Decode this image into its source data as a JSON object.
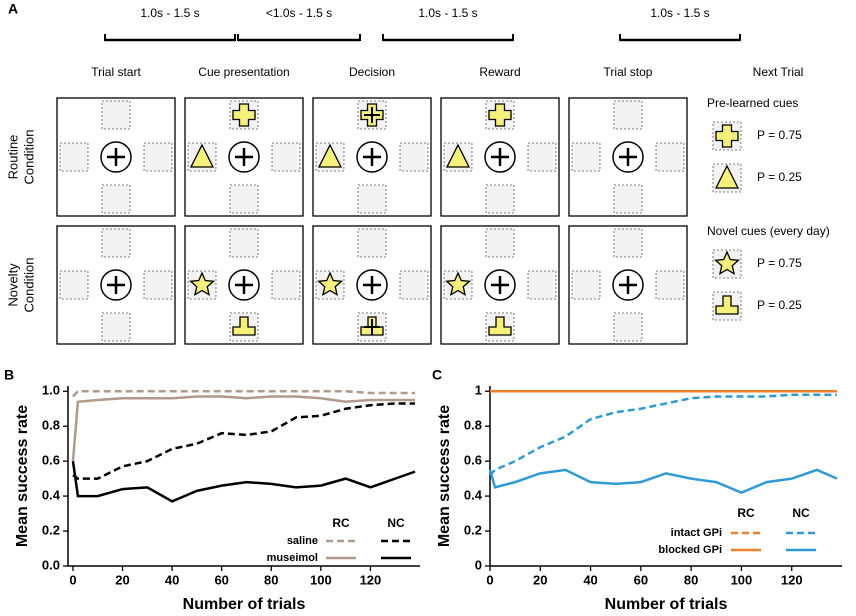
{
  "panel_a": {
    "label": "A",
    "timings": [
      "1.0s - 1.5 s",
      "<1.0s - 1.5 s",
      "1.0s - 1.5 s",
      "1.0s - 1.5 s"
    ],
    "phases": [
      "Trial start",
      "Cue presentation",
      "Decision",
      "Reward",
      "Trial stop",
      "Next Trial"
    ],
    "rows": [
      [
        "Routine",
        "Condition"
      ],
      [
        "Novelty",
        "Condition"
      ]
    ],
    "cue_legends": [
      {
        "title": "Pre-learned cues",
        "items": [
          "P = 0.75",
          "P = 0.25"
        ]
      },
      {
        "title": "Novel cues (every day)",
        "items": [
          "P = 0.75",
          "P = 0.25"
        ]
      }
    ]
  },
  "chart_data": [
    {
      "type": "line",
      "panel_label": "B",
      "y_label": "Mean success rate",
      "x_label": "Number of trials",
      "x": [
        0,
        2,
        10,
        20,
        30,
        40,
        50,
        60,
        70,
        80,
        90,
        100,
        110,
        120,
        130,
        138
      ],
      "xlim": [
        -2,
        140
      ],
      "xticks": [
        0,
        20,
        40,
        60,
        80,
        100,
        120
      ],
      "ylim": [
        0,
        1.03
      ],
      "yticks": [
        {
          "value": 0,
          "label": "0.0"
        },
        {
          "value": 0.2,
          "label": "0.2"
        },
        {
          "value": 0.4,
          "label": "0.4"
        },
        {
          "value": 0.6,
          "label": "0.6"
        },
        {
          "value": 0.8,
          "label": "0.8"
        },
        {
          "value": 1,
          "label": "1.0"
        }
      ],
      "series": [
        {
          "name": "saline",
          "group": "RC",
          "color": "#b09a8c",
          "dash": true,
          "values": [
            0.97,
            1,
            1,
            1,
            1,
            1,
            1,
            1,
            1,
            1,
            1,
            1,
            1,
            0.99,
            0.99,
            0.99
          ]
        },
        {
          "name": "museimol",
          "group": "RC",
          "color": "#b09a8c",
          "dash": false,
          "values": [
            0.6,
            0.94,
            0.95,
            0.96,
            0.96,
            0.96,
            0.97,
            0.97,
            0.96,
            0.97,
            0.97,
            0.96,
            0.94,
            0.95,
            0.95,
            0.95
          ]
        },
        {
          "name": "saline",
          "group": "NC",
          "color": "#000000",
          "dash": true,
          "values": [
            0.52,
            0.5,
            0.5,
            0.57,
            0.6,
            0.67,
            0.7,
            0.76,
            0.75,
            0.77,
            0.85,
            0.86,
            0.9,
            0.92,
            0.93,
            0.93
          ]
        },
        {
          "name": "museimol",
          "group": "NC",
          "color": "#000000",
          "dash": false,
          "values": [
            0.6,
            0.4,
            0.4,
            0.44,
            0.45,
            0.37,
            0.43,
            0.46,
            0.48,
            0.47,
            0.45,
            0.46,
            0.5,
            0.45,
            0.5,
            0.54
          ]
        }
      ]
    },
    {
      "type": "line",
      "panel_label": "C",
      "y_label": "Mean success rate",
      "x_label": "Number of trials",
      "x": [
        0,
        2,
        10,
        20,
        30,
        40,
        50,
        60,
        70,
        80,
        90,
        100,
        110,
        120,
        130,
        138
      ],
      "xlim": [
        0,
        140
      ],
      "xticks": [
        0,
        20,
        40,
        60,
        80,
        100,
        120
      ],
      "ylim": [
        0,
        1.03
      ],
      "yticks": [
        0,
        0.2,
        0.4,
        0.6,
        0.8,
        1
      ],
      "series": [
        {
          "name": "intact GPi",
          "group": "RC",
          "color": "#f07f2a",
          "dash": true,
          "values": [
            1,
            1,
            1,
            1,
            1,
            1,
            1,
            1,
            1,
            1,
            1,
            1,
            1,
            1,
            1,
            1
          ]
        },
        {
          "name": "blocked GPi",
          "group": "RC",
          "color": "#f07f2a",
          "dash": false,
          "values": [
            1,
            1,
            1,
            1,
            1,
            1,
            1,
            1,
            1,
            1,
            1,
            1,
            1,
            1,
            1,
            1
          ]
        },
        {
          "name": "intact GPi",
          "group": "NC",
          "color": "#2f9bd6",
          "dash": true,
          "values": [
            0.52,
            0.55,
            0.6,
            0.68,
            0.74,
            0.84,
            0.88,
            0.9,
            0.93,
            0.96,
            0.97,
            0.97,
            0.97,
            0.98,
            0.98,
            0.98
          ]
        },
        {
          "name": "blocked GPi",
          "group": "NC",
          "color": "#2f9bd6",
          "dash": false,
          "values": [
            0.55,
            0.45,
            0.48,
            0.53,
            0.55,
            0.48,
            0.47,
            0.48,
            0.53,
            0.5,
            0.48,
            0.42,
            0.48,
            0.5,
            0.55,
            0.5
          ]
        }
      ]
    }
  ]
}
